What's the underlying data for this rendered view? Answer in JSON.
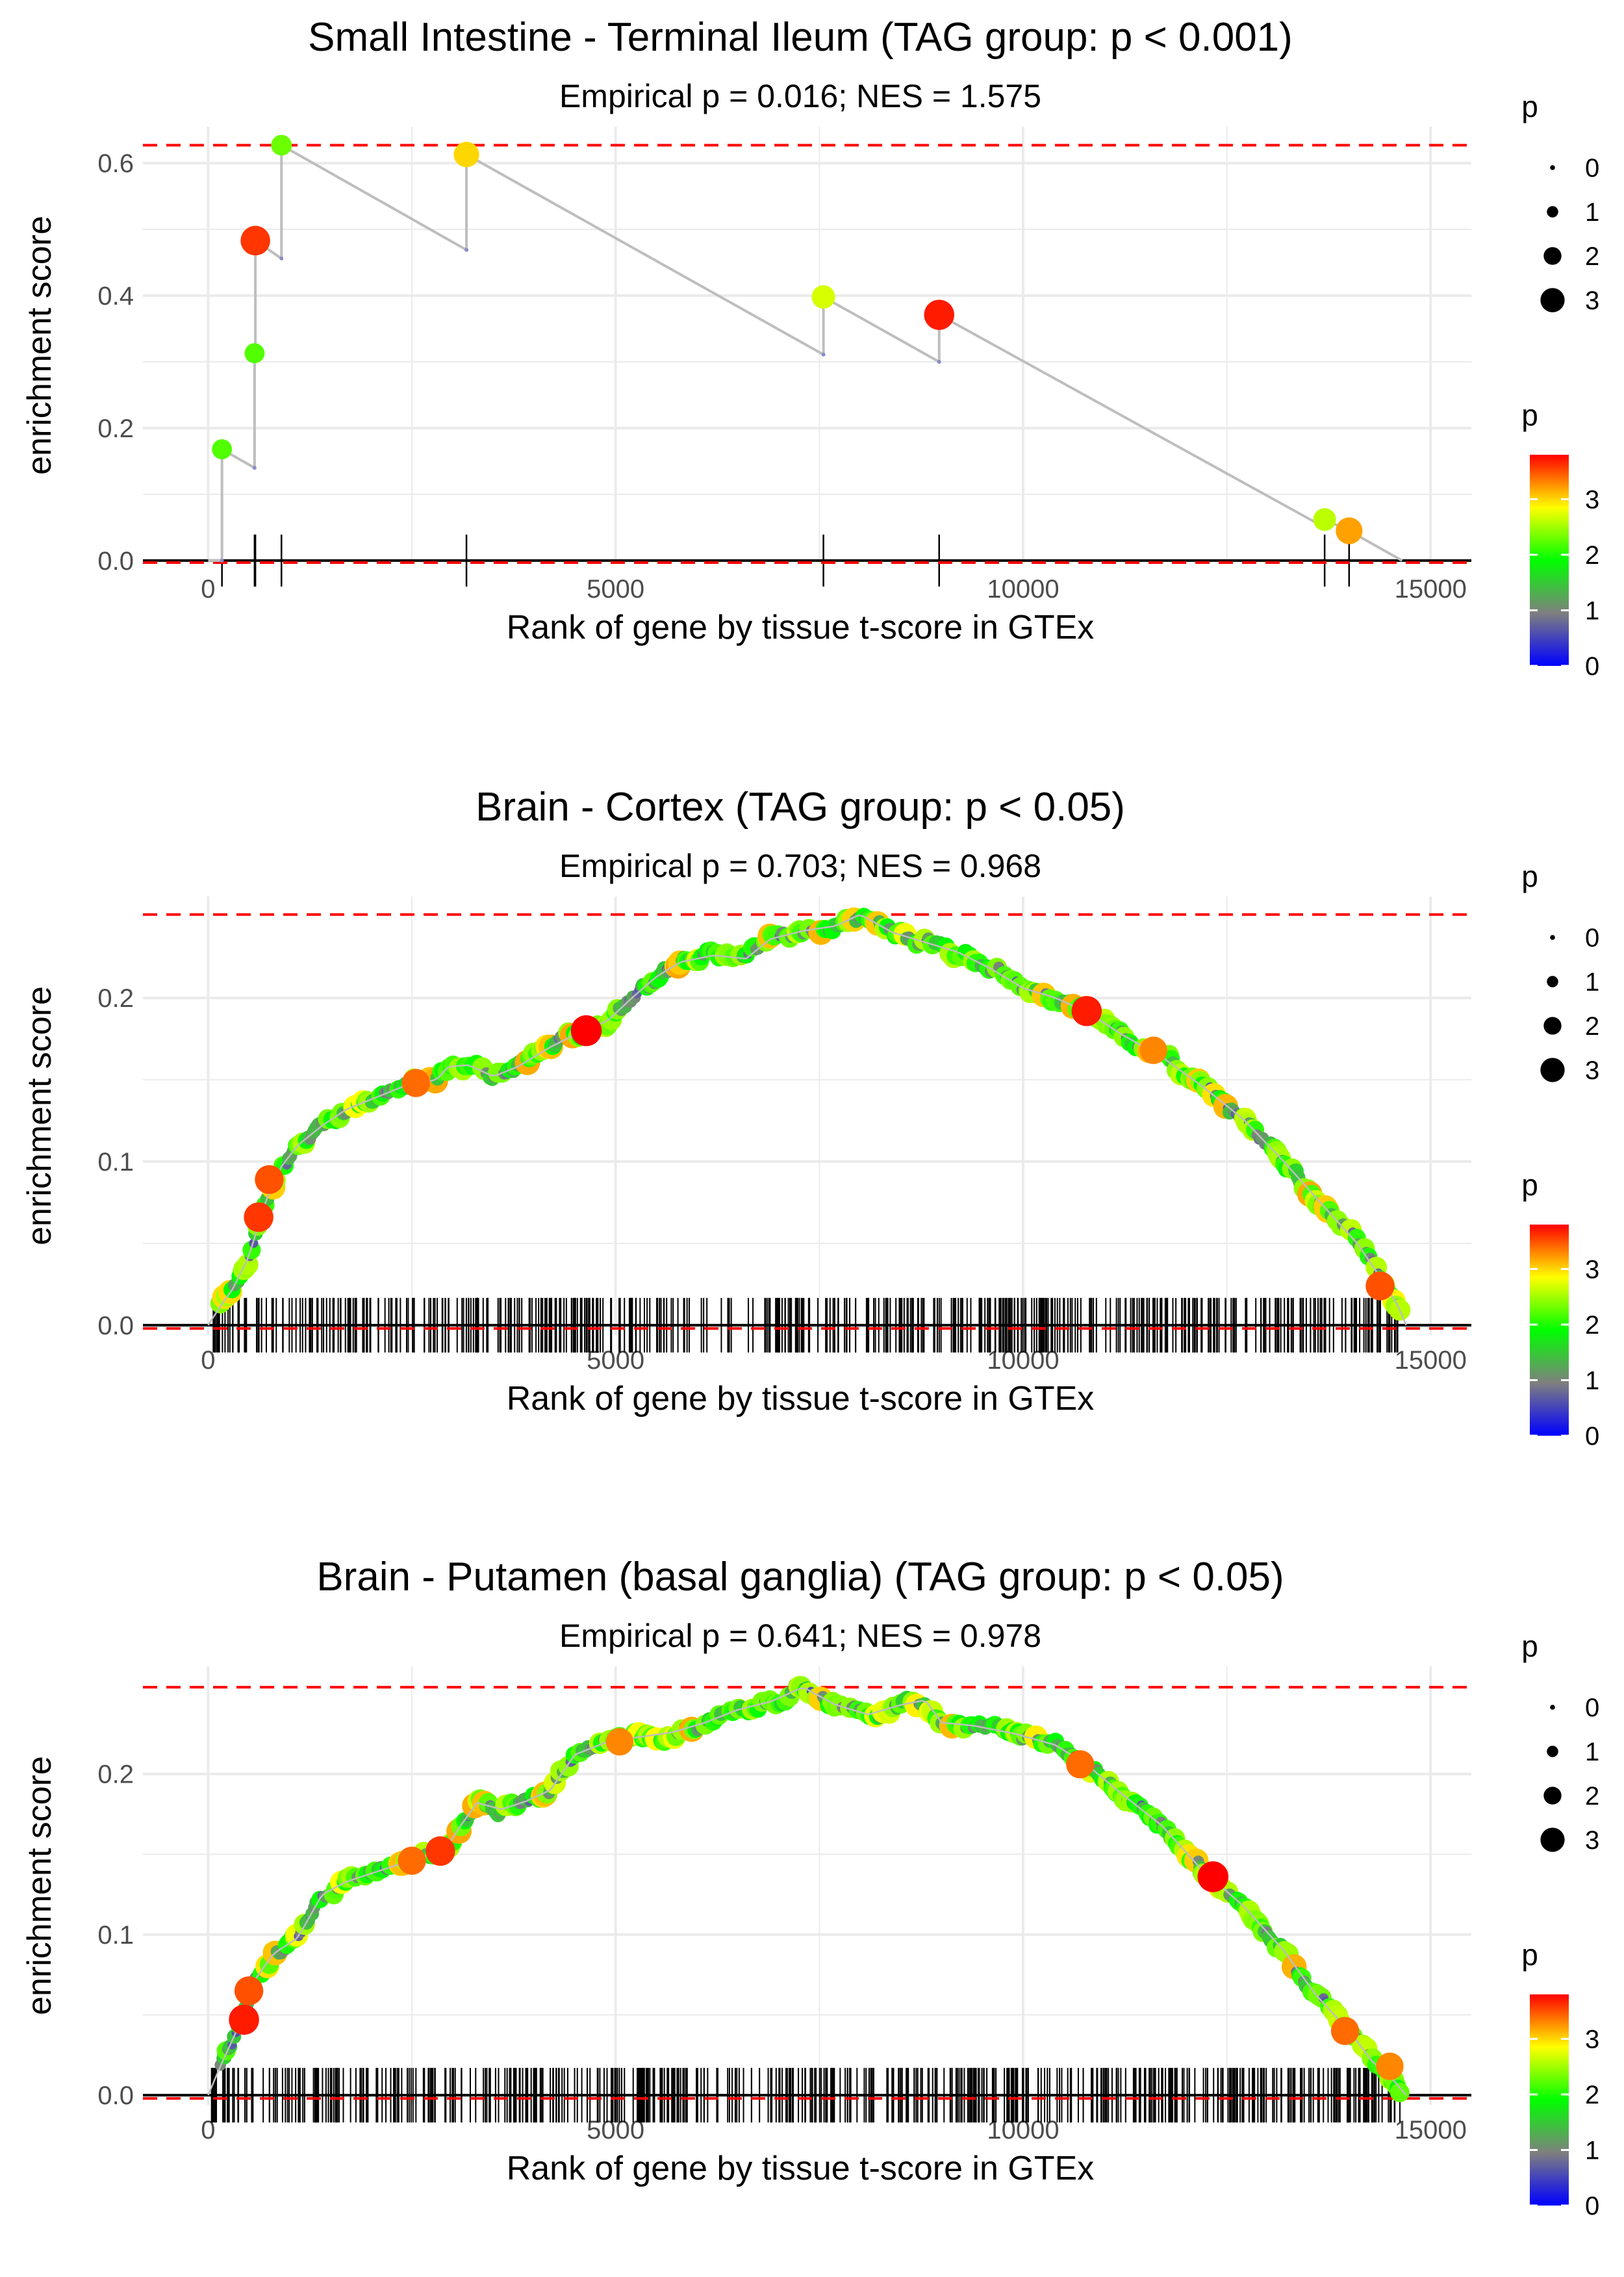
{
  "colors": {
    "grid": "#ebebeb",
    "hline": "#ff0000",
    "zero_line": "#000000",
    "es_line": "#bebebe",
    "tick_text": "#4d4d4d",
    "title_text": "#000000",
    "gradient": [
      "#0000ff",
      "#7f7f7f",
      "#00ff00",
      "#ffff00",
      "#ff0000"
    ]
  },
  "legend": {
    "size_title": "p",
    "size_values": [
      "0",
      "1",
      "2",
      "3"
    ],
    "color_title": "p",
    "color_ticks": [
      "0",
      "1",
      "2",
      "3"
    ]
  },
  "chart_data": [
    {
      "type": "line",
      "title": "Small Intestine - Terminal Ileum (TAG group: p < 0.001)",
      "subtitle": "Empirical p = 0.016; NES = 1.575",
      "xlabel": "Rank of gene by tissue t-score in GTEx",
      "ylabel": "enrichment score",
      "xlim": [
        -800,
        15500
      ],
      "ylim": [
        -0.005,
        0.655
      ],
      "x_ticks": [
        0,
        5000,
        10000,
        15000
      ],
      "x_tick_labels": [
        "0",
        "5000",
        "10000",
        "15000"
      ],
      "y_ticks": [
        0,
        0.2,
        0.4,
        0.6
      ],
      "y_tick_labels": [
        "0.0",
        "0.2",
        "0.4",
        "0.6"
      ],
      "max_dev_line": 0.627,
      "min_dev_line": -0.003,
      "end_rank": 14650,
      "hits": [
        {
          "rank": 170,
          "before": 0.0,
          "es": 0.168,
          "p": 2.2
        },
        {
          "rank": 570,
          "before": 0.14,
          "es": 0.313,
          "p": 2.2
        },
        {
          "rank": 580,
          "before": 0.313,
          "es": 0.483,
          "p": 3.6
        },
        {
          "rank": 900,
          "before": 0.456,
          "es": 0.627,
          "p": 2.3
        },
        {
          "rank": 3170,
          "before": 0.469,
          "es": 0.613,
          "p": 3.0
        },
        {
          "rank": 7550,
          "before": 0.311,
          "es": 0.398,
          "p": 2.7
        },
        {
          "rank": 8970,
          "before": 0.3,
          "es": 0.371,
          "p": 3.7
        },
        {
          "rank": 13700,
          "before": 0.05,
          "es": 0.062,
          "p": 2.6
        },
        {
          "rank": 14000,
          "before": 0.045,
          "es": 0.045,
          "p": 3.2
        }
      ]
    },
    {
      "type": "line",
      "title": "Brain - Cortex (TAG group: p < 0.05)",
      "subtitle": "Empirical p = 0.703; NES = 0.968",
      "xlabel": "Rank of gene by tissue t-score in GTEx",
      "ylabel": "enrichment score",
      "xlim": [
        -800,
        15500
      ],
      "ylim": [
        -0.006,
        0.262
      ],
      "x_ticks": [
        0,
        5000,
        10000,
        15000
      ],
      "x_tick_labels": [
        "0",
        "5000",
        "10000",
        "15000"
      ],
      "y_ticks": [
        0,
        0.1,
        0.2
      ],
      "y_tick_labels": [
        "0.0",
        "0.1",
        "0.2"
      ],
      "max_dev_line": 0.251,
      "min_dev_line": -0.002,
      "end_rank": 14700,
      "rug_count": 560,
      "curve": [
        [
          0,
          0.0
        ],
        [
          170,
          0.013
        ],
        [
          300,
          0.022
        ],
        [
          500,
          0.042
        ],
        [
          700,
          0.075
        ],
        [
          900,
          0.097
        ],
        [
          1100,
          0.11
        ],
        [
          1400,
          0.122
        ],
        [
          1700,
          0.132
        ],
        [
          2000,
          0.138
        ],
        [
          2400,
          0.146
        ],
        [
          2800,
          0.15
        ],
        [
          2950,
          0.158
        ],
        [
          3200,
          0.159
        ],
        [
          3500,
          0.152
        ],
        [
          3800,
          0.158
        ],
        [
          4200,
          0.17
        ],
        [
          4600,
          0.18
        ],
        [
          4900,
          0.186
        ],
        [
          5200,
          0.2
        ],
        [
          5500,
          0.213
        ],
        [
          5800,
          0.222
        ],
        [
          6200,
          0.226
        ],
        [
          6600,
          0.224
        ],
        [
          6900,
          0.236
        ],
        [
          7300,
          0.241
        ],
        [
          7700,
          0.244
        ],
        [
          8000,
          0.251
        ],
        [
          8400,
          0.24
        ],
        [
          8800,
          0.234
        ],
        [
          9200,
          0.228
        ],
        [
          9600,
          0.218
        ],
        [
          10000,
          0.206
        ],
        [
          10400,
          0.2
        ],
        [
          10800,
          0.191
        ],
        [
          11200,
          0.178
        ],
        [
          11700,
          0.164
        ],
        [
          12200,
          0.146
        ],
        [
          12700,
          0.126
        ],
        [
          13200,
          0.1
        ],
        [
          13700,
          0.072
        ],
        [
          14100,
          0.05
        ],
        [
          14400,
          0.028
        ],
        [
          14600,
          0.012
        ],
        [
          14700,
          0.0
        ]
      ],
      "highlights": [
        {
          "rank": 620,
          "es": 0.066,
          "p": 3.6
        },
        {
          "rank": 750,
          "es": 0.089,
          "p": 3.5
        },
        {
          "rank": 2550,
          "es": 0.148,
          "p": 3.4
        },
        {
          "rank": 4640,
          "es": 0.18,
          "p": 3.8
        },
        {
          "rank": 10780,
          "es": 0.192,
          "p": 3.7
        },
        {
          "rank": 11600,
          "es": 0.168,
          "p": 3.3
        },
        {
          "rank": 14380,
          "es": 0.024,
          "p": 3.5
        }
      ]
    },
    {
      "type": "line",
      "title": "Brain - Putamen (basal ganglia) (TAG group: p < 0.05)",
      "subtitle": "Empirical p = 0.641; NES = 0.978",
      "xlabel": "Rank of gene by tissue t-score in GTEx",
      "ylabel": "enrichment score",
      "xlim": [
        -800,
        15500
      ],
      "ylim": [
        -0.006,
        0.267
      ],
      "x_ticks": [
        0,
        5000,
        10000,
        15000
      ],
      "x_tick_labels": [
        "0",
        "5000",
        "10000",
        "15000"
      ],
      "y_ticks": [
        0,
        0.1,
        0.2
      ],
      "y_tick_labels": [
        "0.0",
        "0.1",
        "0.2"
      ],
      "max_dev_line": 0.254,
      "min_dev_line": -0.002,
      "end_rank": 14700,
      "rug_count": 560,
      "curve": [
        [
          0,
          0.0
        ],
        [
          150,
          0.018
        ],
        [
          350,
          0.04
        ],
        [
          550,
          0.07
        ],
        [
          800,
          0.088
        ],
        [
          1100,
          0.098
        ],
        [
          1400,
          0.125
        ],
        [
          1700,
          0.133
        ],
        [
          2000,
          0.138
        ],
        [
          2300,
          0.143
        ],
        [
          2600,
          0.148
        ],
        [
          2900,
          0.152
        ],
        [
          3100,
          0.168
        ],
        [
          3300,
          0.182
        ],
        [
          3600,
          0.178
        ],
        [
          3900,
          0.183
        ],
        [
          4200,
          0.19
        ],
        [
          4500,
          0.212
        ],
        [
          4900,
          0.22
        ],
        [
          5300,
          0.223
        ],
        [
          5700,
          0.226
        ],
        [
          6100,
          0.232
        ],
        [
          6500,
          0.24
        ],
        [
          6900,
          0.245
        ],
        [
          7300,
          0.254
        ],
        [
          7700,
          0.243
        ],
        [
          8100,
          0.237
        ],
        [
          8500,
          0.243
        ],
        [
          8800,
          0.246
        ],
        [
          9000,
          0.232
        ],
        [
          9400,
          0.23
        ],
        [
          9900,
          0.225
        ],
        [
          10400,
          0.218
        ],
        [
          10800,
          0.205
        ],
        [
          11200,
          0.188
        ],
        [
          11700,
          0.168
        ],
        [
          12200,
          0.14
        ],
        [
          12700,
          0.118
        ],
        [
          13200,
          0.09
        ],
        [
          13600,
          0.062
        ],
        [
          14000,
          0.04
        ],
        [
          14300,
          0.02
        ],
        [
          14500,
          0.012
        ],
        [
          14700,
          0.0
        ]
      ],
      "highlights": [
        {
          "rank": 440,
          "es": 0.047,
          "p": 3.7
        },
        {
          "rank": 500,
          "es": 0.065,
          "p": 3.5
        },
        {
          "rank": 2500,
          "es": 0.146,
          "p": 3.4
        },
        {
          "rank": 2850,
          "es": 0.152,
          "p": 3.6
        },
        {
          "rank": 5050,
          "es": 0.22,
          "p": 3.3
        },
        {
          "rank": 10700,
          "es": 0.206,
          "p": 3.4
        },
        {
          "rank": 12330,
          "es": 0.136,
          "p": 3.8
        },
        {
          "rank": 13950,
          "es": 0.04,
          "p": 3.4
        },
        {
          "rank": 14500,
          "es": 0.018,
          "p": 3.3
        }
      ]
    }
  ]
}
